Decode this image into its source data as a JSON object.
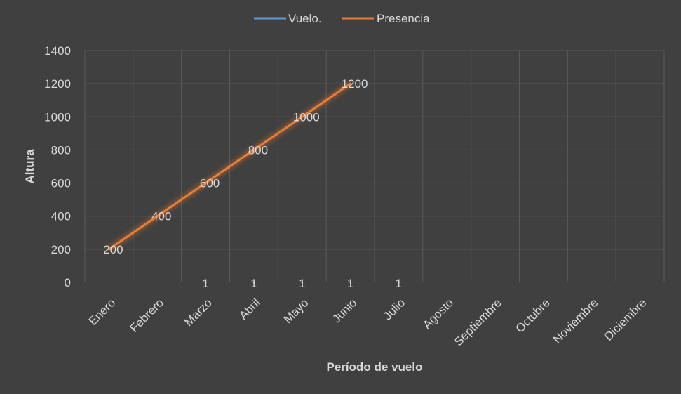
{
  "chart_data": {
    "type": "line",
    "title": "",
    "xlabel": "Período de vuelo",
    "ylabel": "Altura",
    "ylim": [
      0,
      1400
    ],
    "yticks": [
      0,
      200,
      400,
      600,
      800,
      1000,
      1200,
      1400
    ],
    "categories": [
      "Enero",
      "Febrero",
      "Marzo",
      "Abril",
      "Mayo",
      "Junio",
      "Julio",
      "Agosto",
      "Septiembre",
      "Octubre",
      "Noviembre",
      "Diciembre"
    ],
    "grid": true,
    "legend_position": "top",
    "series": [
      {
        "name": "Vuelo.",
        "color": "#5b9bd5",
        "values": [
          null,
          null,
          1,
          1,
          1,
          1,
          1,
          null,
          null,
          null,
          null,
          null
        ]
      },
      {
        "name": "Presencia",
        "color": "#ed7d31",
        "values": [
          200,
          400,
          600,
          800,
          1000,
          1200,
          null,
          null,
          null,
          null,
          null,
          null
        ]
      }
    ]
  },
  "colors": {
    "background": "#404040",
    "grid": "#5a5a5a",
    "text": "#d9d9d9"
  }
}
